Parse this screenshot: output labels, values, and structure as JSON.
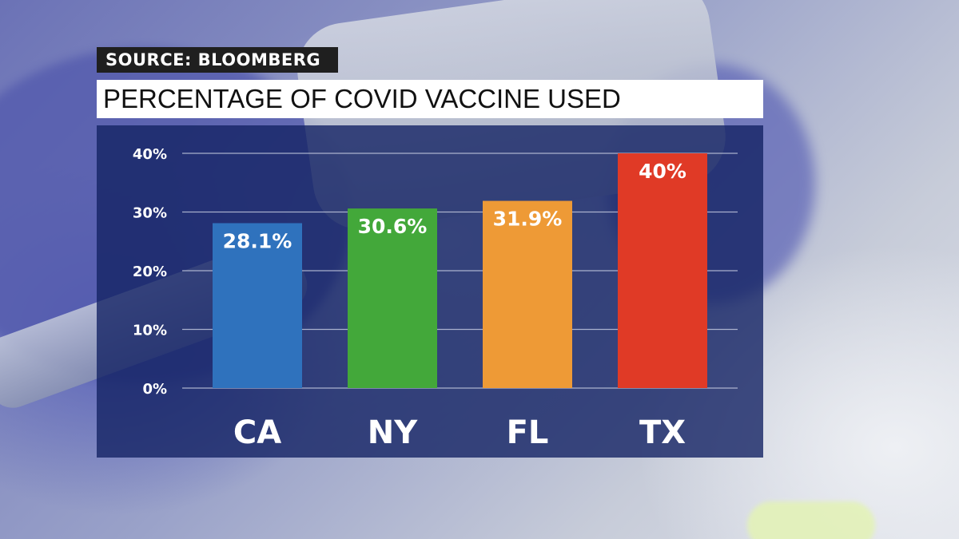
{
  "source_label": "SOURCE: BLOOMBERG",
  "chart_data": {
    "type": "bar",
    "title": "PERCENTAGE OF COVID VACCINE USED",
    "categories": [
      "CA",
      "NY",
      "FL",
      "TX"
    ],
    "values": [
      28.1,
      30.6,
      31.9,
      40
    ],
    "data_labels": [
      "28.1%",
      "30.6%",
      "31.9%",
      "40%"
    ],
    "bar_colors": [
      "#2f72bd",
      "#43a83a",
      "#ee9a36",
      "#e03a26"
    ],
    "ylim": [
      0,
      40
    ],
    "yticks": [
      0,
      10,
      20,
      30,
      40
    ],
    "ytick_labels": [
      "0%",
      "10%",
      "20%",
      "30%",
      "40%"
    ],
    "grid": true,
    "xlabel": "",
    "ylabel": ""
  }
}
